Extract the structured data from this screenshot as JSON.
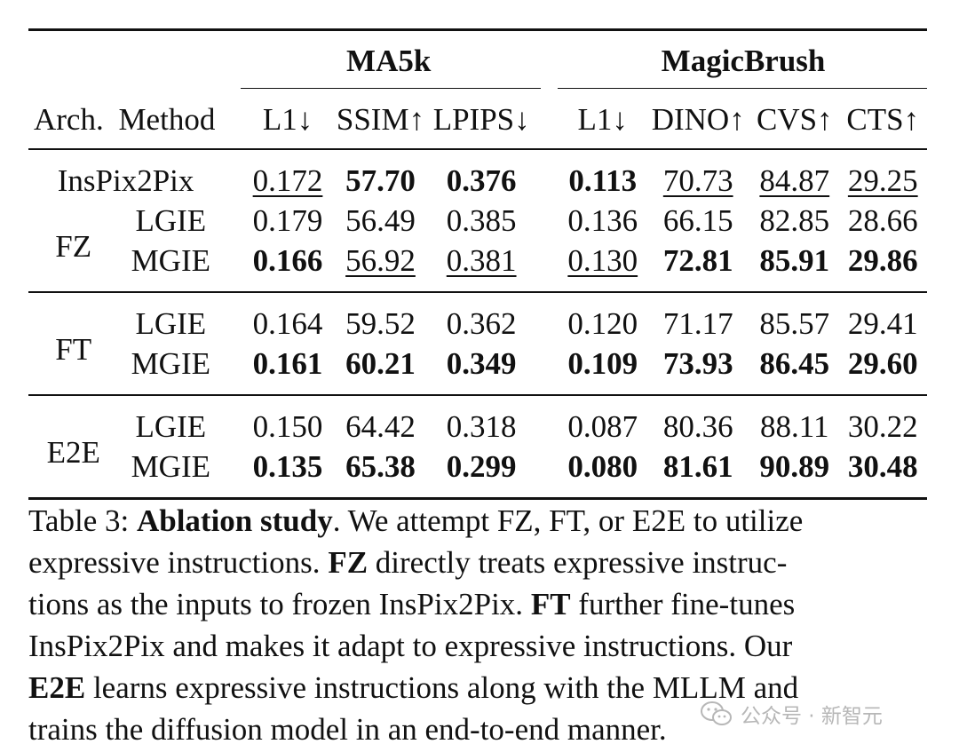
{
  "table": {
    "groups": [
      "MA5k",
      "MagicBrush"
    ],
    "columns": {
      "arch": "Arch.",
      "method": "Method",
      "ma5k": [
        "L1↓",
        "SSIM↑",
        "LPIPS↓"
      ],
      "magicbrush": [
        "L1↓",
        "DINO↑",
        "CVS↑",
        "CTS↑"
      ]
    },
    "sections": [
      {
        "arch": "FZ",
        "baseline": {
          "method": "InsPix2Pix",
          "values": [
            "0.172",
            "57.70",
            "0.376",
            "0.113",
            "70.73",
            "84.87",
            "29.25"
          ],
          "styles": [
            "u",
            "b",
            "b",
            "b",
            "u",
            "u",
            "u"
          ]
        },
        "rows": [
          {
            "method": "LGIE",
            "values": [
              "0.179",
              "56.49",
              "0.385",
              "0.136",
              "66.15",
              "82.85",
              "28.66"
            ],
            "styles": [
              "",
              "",
              "",
              "",
              "",
              "",
              ""
            ]
          },
          {
            "method": "MGIE",
            "values": [
              "0.166",
              "56.92",
              "0.381",
              "0.130",
              "72.81",
              "85.91",
              "29.86"
            ],
            "styles": [
              "b",
              "u",
              "u",
              "u",
              "b",
              "b",
              "b"
            ]
          }
        ]
      },
      {
        "arch": "FT",
        "rows": [
          {
            "method": "LGIE",
            "values": [
              "0.164",
              "59.52",
              "0.362",
              "0.120",
              "71.17",
              "85.57",
              "29.41"
            ],
            "styles": [
              "",
              "",
              "",
              "",
              "",
              "",
              ""
            ]
          },
          {
            "method": "MGIE",
            "values": [
              "0.161",
              "60.21",
              "0.349",
              "0.109",
              "73.93",
              "86.45",
              "29.60"
            ],
            "styles": [
              "b",
              "b",
              "b",
              "b",
              "b",
              "b",
              "b"
            ]
          }
        ]
      },
      {
        "arch": "E2E",
        "rows": [
          {
            "method": "LGIE",
            "values": [
              "0.150",
              "64.42",
              "0.318",
              "0.087",
              "80.36",
              "88.11",
              "30.22"
            ],
            "styles": [
              "",
              "",
              "",
              "",
              "",
              "",
              ""
            ]
          },
          {
            "method": "MGIE",
            "values": [
              "0.135",
              "65.38",
              "0.299",
              "0.080",
              "81.61",
              "90.89",
              "30.48"
            ],
            "styles": [
              "b",
              "b",
              "b",
              "b",
              "b",
              "b",
              "b"
            ]
          }
        ]
      }
    ]
  },
  "caption": {
    "label": "Table 3:",
    "title": "Ablation study",
    "lines": [
      [
        {
          "t": "Table 3: "
        },
        {
          "t": "Ablation study",
          "b": true
        },
        {
          "t": ". We attempt FZ, FT, or E2E to utilize"
        }
      ],
      [
        {
          "t": "expressive instructions. "
        },
        {
          "t": "FZ",
          "b": true
        },
        {
          "t": " directly treats expressive instruc-"
        }
      ],
      [
        {
          "t": "tions as the inputs to frozen InsPix2Pix. "
        },
        {
          "t": "FT",
          "b": true
        },
        {
          "t": " further fine-tunes"
        }
      ],
      [
        {
          "t": "InsPix2Pix and makes it adapt to expressive instructions. Our"
        }
      ],
      [
        {
          "t": "E2E",
          "b": true
        },
        {
          "t": " learns expressive instructions along with the MLLM and"
        }
      ],
      [
        {
          "t": "trains the diffusion model in an end-to-end manner."
        }
      ]
    ]
  },
  "watermark": {
    "text": "公众号 · 新智元",
    "icon": "wechat-icon",
    "color": "#b7b7b7"
  }
}
